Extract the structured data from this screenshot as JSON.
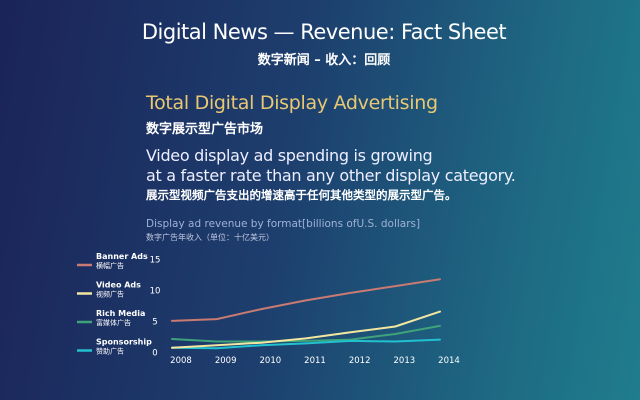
{
  "header": {
    "title": "Digital News — Revenue: Fact Sheet",
    "subtitle": "数字新闻  –  收入：回顾"
  },
  "section": {
    "title": "Total Digital Display Advertising",
    "subtitle": "数字展示型广告市场",
    "headline_line1": "Video display ad spending is growing",
    "headline_line2": "at a faster rate than any other display category.",
    "headline_cn": "展示型视频广告支出的增速高于任何其他类型的展示型广告。"
  },
  "chart_data": {
    "type": "line",
    "title": "Display ad revenue by format[billions ofU.S. dollars]",
    "subtitle": "数字广告年收入（单位：十亿美元）",
    "x": [
      "2008",
      "2009",
      "2010",
      "2011",
      "2012",
      "2013",
      "2014"
    ],
    "ylim": [
      0,
      15
    ],
    "yticks": [
      "0",
      "5",
      "10",
      "15"
    ],
    "grid": false,
    "legend": "left",
    "series": [
      {
        "name": "Banner Ads",
        "name_cn": "横幅广告",
        "color": "#c97a72",
        "values": [
          5.1,
          5.4,
          7.0,
          8.4,
          9.6,
          10.7,
          11.8
        ]
      },
      {
        "name": "Video Ads",
        "name_cn": "视频广告",
        "color": "#f3e6a0",
        "values": [
          0.8,
          1.2,
          1.6,
          2.3,
          3.3,
          4.2,
          6.6
        ]
      },
      {
        "name": "Rich Media",
        "name_cn": "富媒体广告",
        "color": "#3fa37a",
        "values": [
          2.2,
          1.8,
          1.8,
          1.9,
          2.1,
          3.0,
          4.3
        ]
      },
      {
        "name": "Sponsorship",
        "name_cn": "赞助广告",
        "color": "#22c1cf",
        "values": [
          0.8,
          0.7,
          1.2,
          1.5,
          1.9,
          1.8,
          2.1
        ]
      }
    ]
  }
}
